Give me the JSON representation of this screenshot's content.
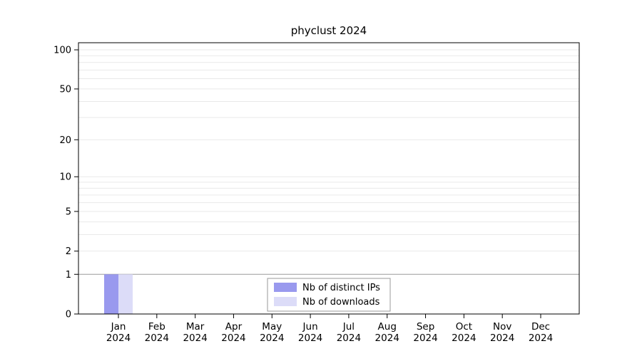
{
  "title": "phyclust 2024",
  "chart_data": {
    "type": "bar",
    "title": "phyclust 2024",
    "xlabel": "",
    "ylabel": "",
    "categories": [
      "Jan",
      "Feb",
      "Mar",
      "Apr",
      "May",
      "Jun",
      "Jul",
      "Aug",
      "Sep",
      "Oct",
      "Nov",
      "Dec"
    ],
    "category_year": "2024",
    "series": [
      {
        "name": "Nb of distinct IPs",
        "color": "#9999ee",
        "values": [
          1,
          0,
          0,
          0,
          0,
          0,
          0,
          0,
          0,
          0,
          0,
          0
        ]
      },
      {
        "name": "Nb of downloads",
        "color": "#dcdcf8",
        "values": [
          1,
          0,
          0,
          0,
          0,
          0,
          0,
          0,
          0,
          0,
          0,
          0
        ]
      }
    ],
    "y_ticks": [
      0,
      1,
      2,
      5,
      10,
      20,
      50,
      100
    ],
    "y_scale": "log1p",
    "ylim": [
      0,
      100
    ],
    "grid": "horizontal-minor",
    "grid_minor_values": [
      1,
      2,
      3,
      4,
      5,
      6,
      7,
      8,
      9,
      10,
      20,
      30,
      40,
      50,
      60,
      70,
      80,
      90,
      100
    ],
    "legend_position": "bottom-center",
    "colors": {
      "grid_minor": "#e9e9e9",
      "grid_unit_line": "#9a9a9a",
      "axis": "#000000",
      "legend_border": "#999999",
      "legend_bg": "#ffffff"
    }
  }
}
